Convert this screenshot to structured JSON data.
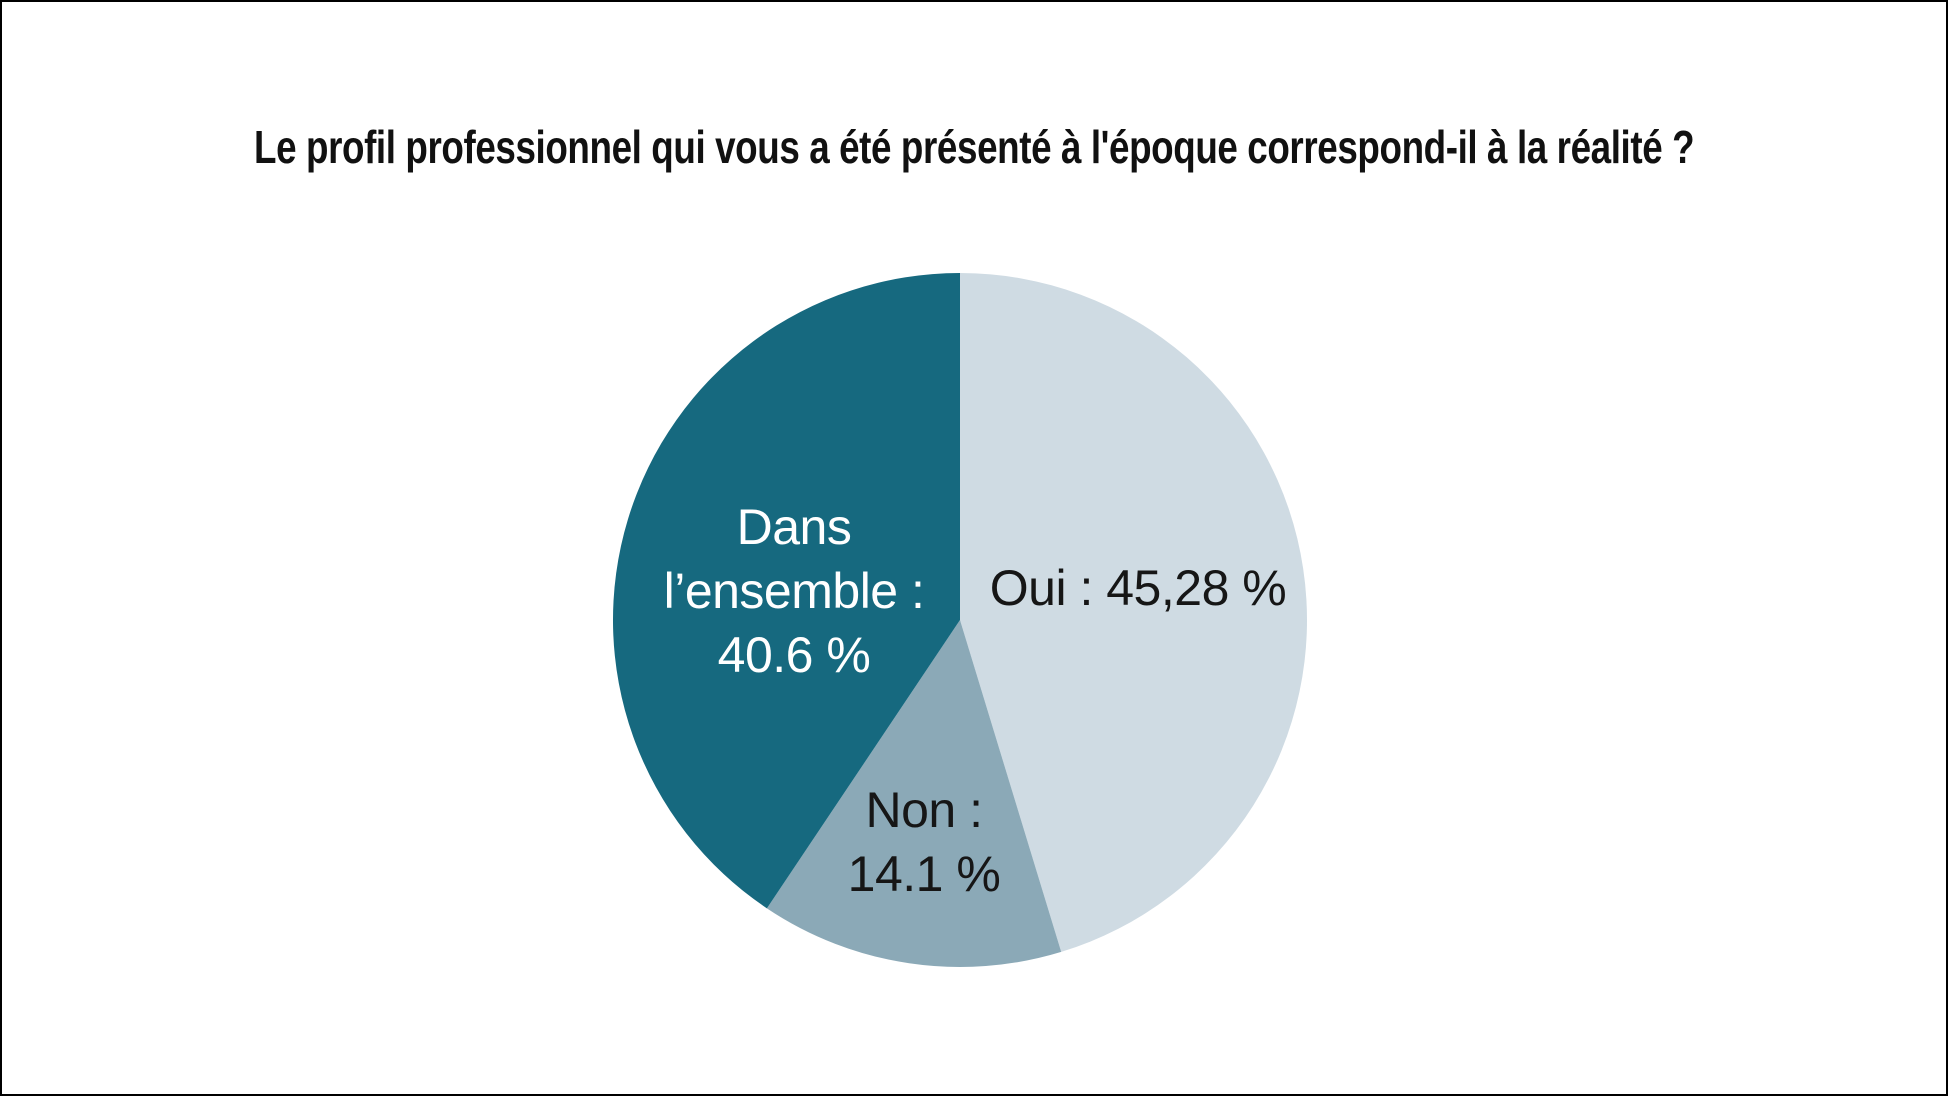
{
  "chart_data": {
    "type": "pie",
    "title": "Le profil professionnel qui vous a été présenté à l'époque correspond-il à la réalité ?",
    "start_angle_deg": 0,
    "direction": "clockwise",
    "legend": "none",
    "background": "#ffffff",
    "border_color": "#000000",
    "title_color": "#111111",
    "slices": [
      {
        "name": "Oui",
        "value": 45.28,
        "label_lines": [
          "Oui : 45,28 %"
        ],
        "color": "#cfdbe3",
        "label_color": "#161616"
      },
      {
        "name": "Non",
        "value": 14.1,
        "label_lines": [
          "Non :",
          "14.1 %"
        ],
        "color": "#8ba9b7",
        "label_color": "#161616"
      },
      {
        "name": "Dans l'ensemble",
        "value": 40.6,
        "label_lines": [
          "Dans",
          "l’ensemble :",
          "40.6 %"
        ],
        "color": "#16697f",
        "label_color": "#ffffff"
      }
    ]
  }
}
